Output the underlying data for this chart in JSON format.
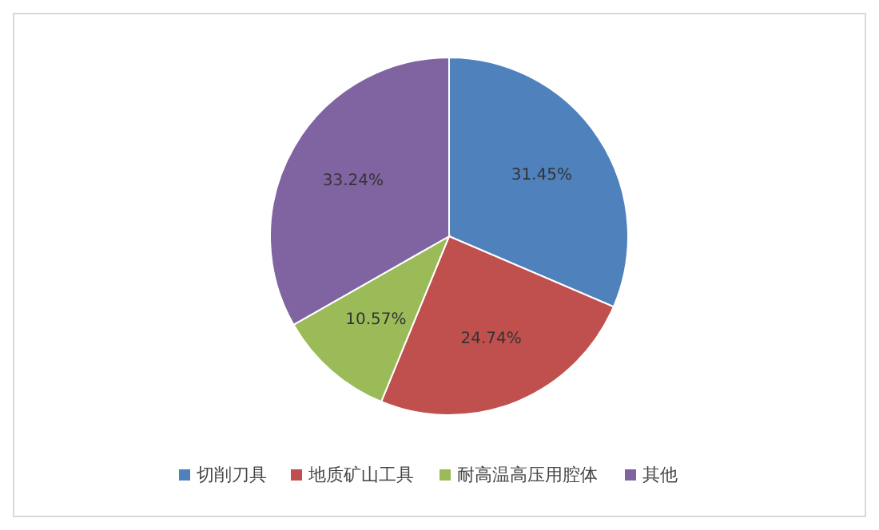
{
  "chart_data": {
    "type": "pie",
    "categories": [
      "切削刀具",
      "地质矿山工具",
      "耐高温高压用腔体",
      "其他"
    ],
    "values": [
      31.45,
      24.74,
      10.57,
      33.24
    ],
    "colors": [
      "#4f81bd",
      "#c0504d",
      "#9bbb59",
      "#8064a2"
    ],
    "data_labels": true,
    "value_labels": [
      "31.45%",
      "24.74%",
      "10.57%",
      "33.24%"
    ],
    "legend": "bottom"
  }
}
